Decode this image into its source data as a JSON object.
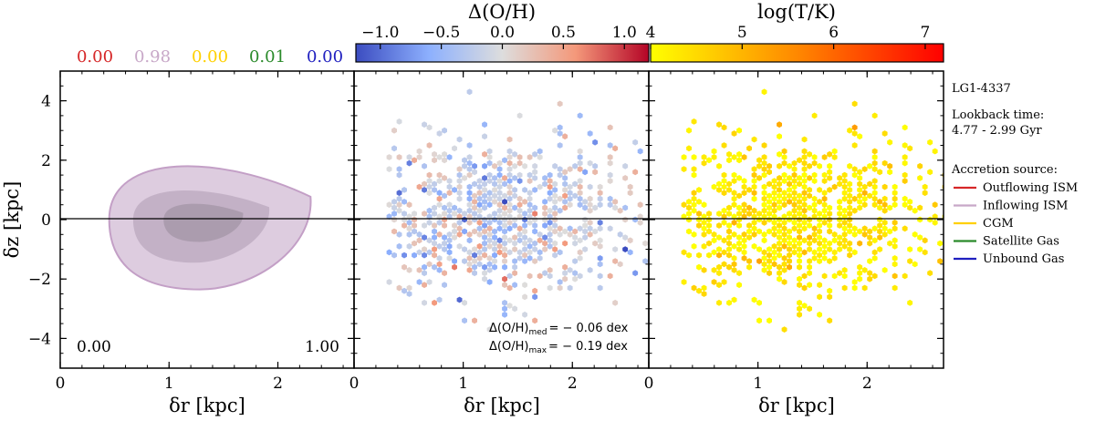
{
  "chart_data": [
    {
      "type": "contour",
      "panel": "left",
      "xlabel": "δr [kpc]",
      "ylabel": "δz [kpc]",
      "xlim": [
        0,
        2.7
      ],
      "ylim": [
        -5,
        5
      ],
      "xticks": [
        "0",
        "1",
        "2"
      ],
      "yticks": [
        "−4",
        "−2",
        "0",
        "2",
        "4"
      ],
      "source_fractions": [
        {
          "value": "0.00",
          "color": "#d62728"
        },
        {
          "value": "0.98",
          "color": "#c8a8c8"
        },
        {
          "value": "0.00",
          "color": "#ffd000"
        },
        {
          "value": "0.01",
          "color": "#2a8a2a"
        },
        {
          "value": "0.00",
          "color": "#1f1fbf"
        }
      ],
      "corner_left": "0.00",
      "corner_right": "1.00",
      "contours": [
        {
          "level": "outer",
          "r_range": [
            0.45,
            2.3
          ],
          "z_range": [
            -2.35,
            2.2
          ]
        },
        {
          "level": "middle",
          "r_range": [
            0.67,
            1.92
          ],
          "z_range": [
            -1.45,
            1.2
          ]
        },
        {
          "level": "inner",
          "r_range": [
            0.95,
            1.68
          ],
          "z_range": [
            -0.75,
            0.65
          ]
        }
      ]
    },
    {
      "type": "hexbin",
      "panel": "middle",
      "xlabel": "δr [kpc]",
      "xlim": [
        0,
        2.7
      ],
      "ylim": [
        -5,
        5
      ],
      "xticks": [
        "0",
        "1",
        "2"
      ],
      "colorbar": {
        "label": "Δ(O/H)",
        "range": [
          -1.2,
          1.2
        ],
        "ticks": [
          "−1.0",
          "−0.5",
          "0.0",
          "0.5",
          "1.0"
        ],
        "colormap": "coolwarm"
      },
      "annotation_med": {
        "label": "Δ(O/H)",
        "sub": "med",
        "value": "= − 0.06 dex"
      },
      "annotation_max": {
        "label": "Δ(O/H)",
        "sub": "max",
        "value": "= − 0.19 dex"
      }
    },
    {
      "type": "hexbin",
      "panel": "right",
      "xlabel": "δr [kpc]",
      "xlim": [
        0,
        2.7
      ],
      "ylim": [
        -5,
        5
      ],
      "xticks": [
        "0",
        "1",
        "2"
      ],
      "colorbar": {
        "label": "log(T/K)",
        "range": [
          4,
          7.2
        ],
        "ticks": [
          "4",
          "5",
          "6",
          "7"
        ],
        "colormap": "autumn_r"
      }
    }
  ],
  "legend": {
    "galaxy": "LG1-4337",
    "lookback_label": "Lookback time:",
    "lookback_value": "4.77 - 2.99 Gyr",
    "source_title": "Accretion source:",
    "items": [
      {
        "label": "Outflowing ISM",
        "color": "#d62728"
      },
      {
        "label": "Inflowing ISM",
        "color": "#c8a8c8"
      },
      {
        "label": "CGM",
        "color": "#ffd000"
      },
      {
        "label": "Satellite Gas",
        "color": "#2a8a2a"
      },
      {
        "label": "Unbound Gas",
        "color": "#1f1fbf"
      }
    ]
  }
}
